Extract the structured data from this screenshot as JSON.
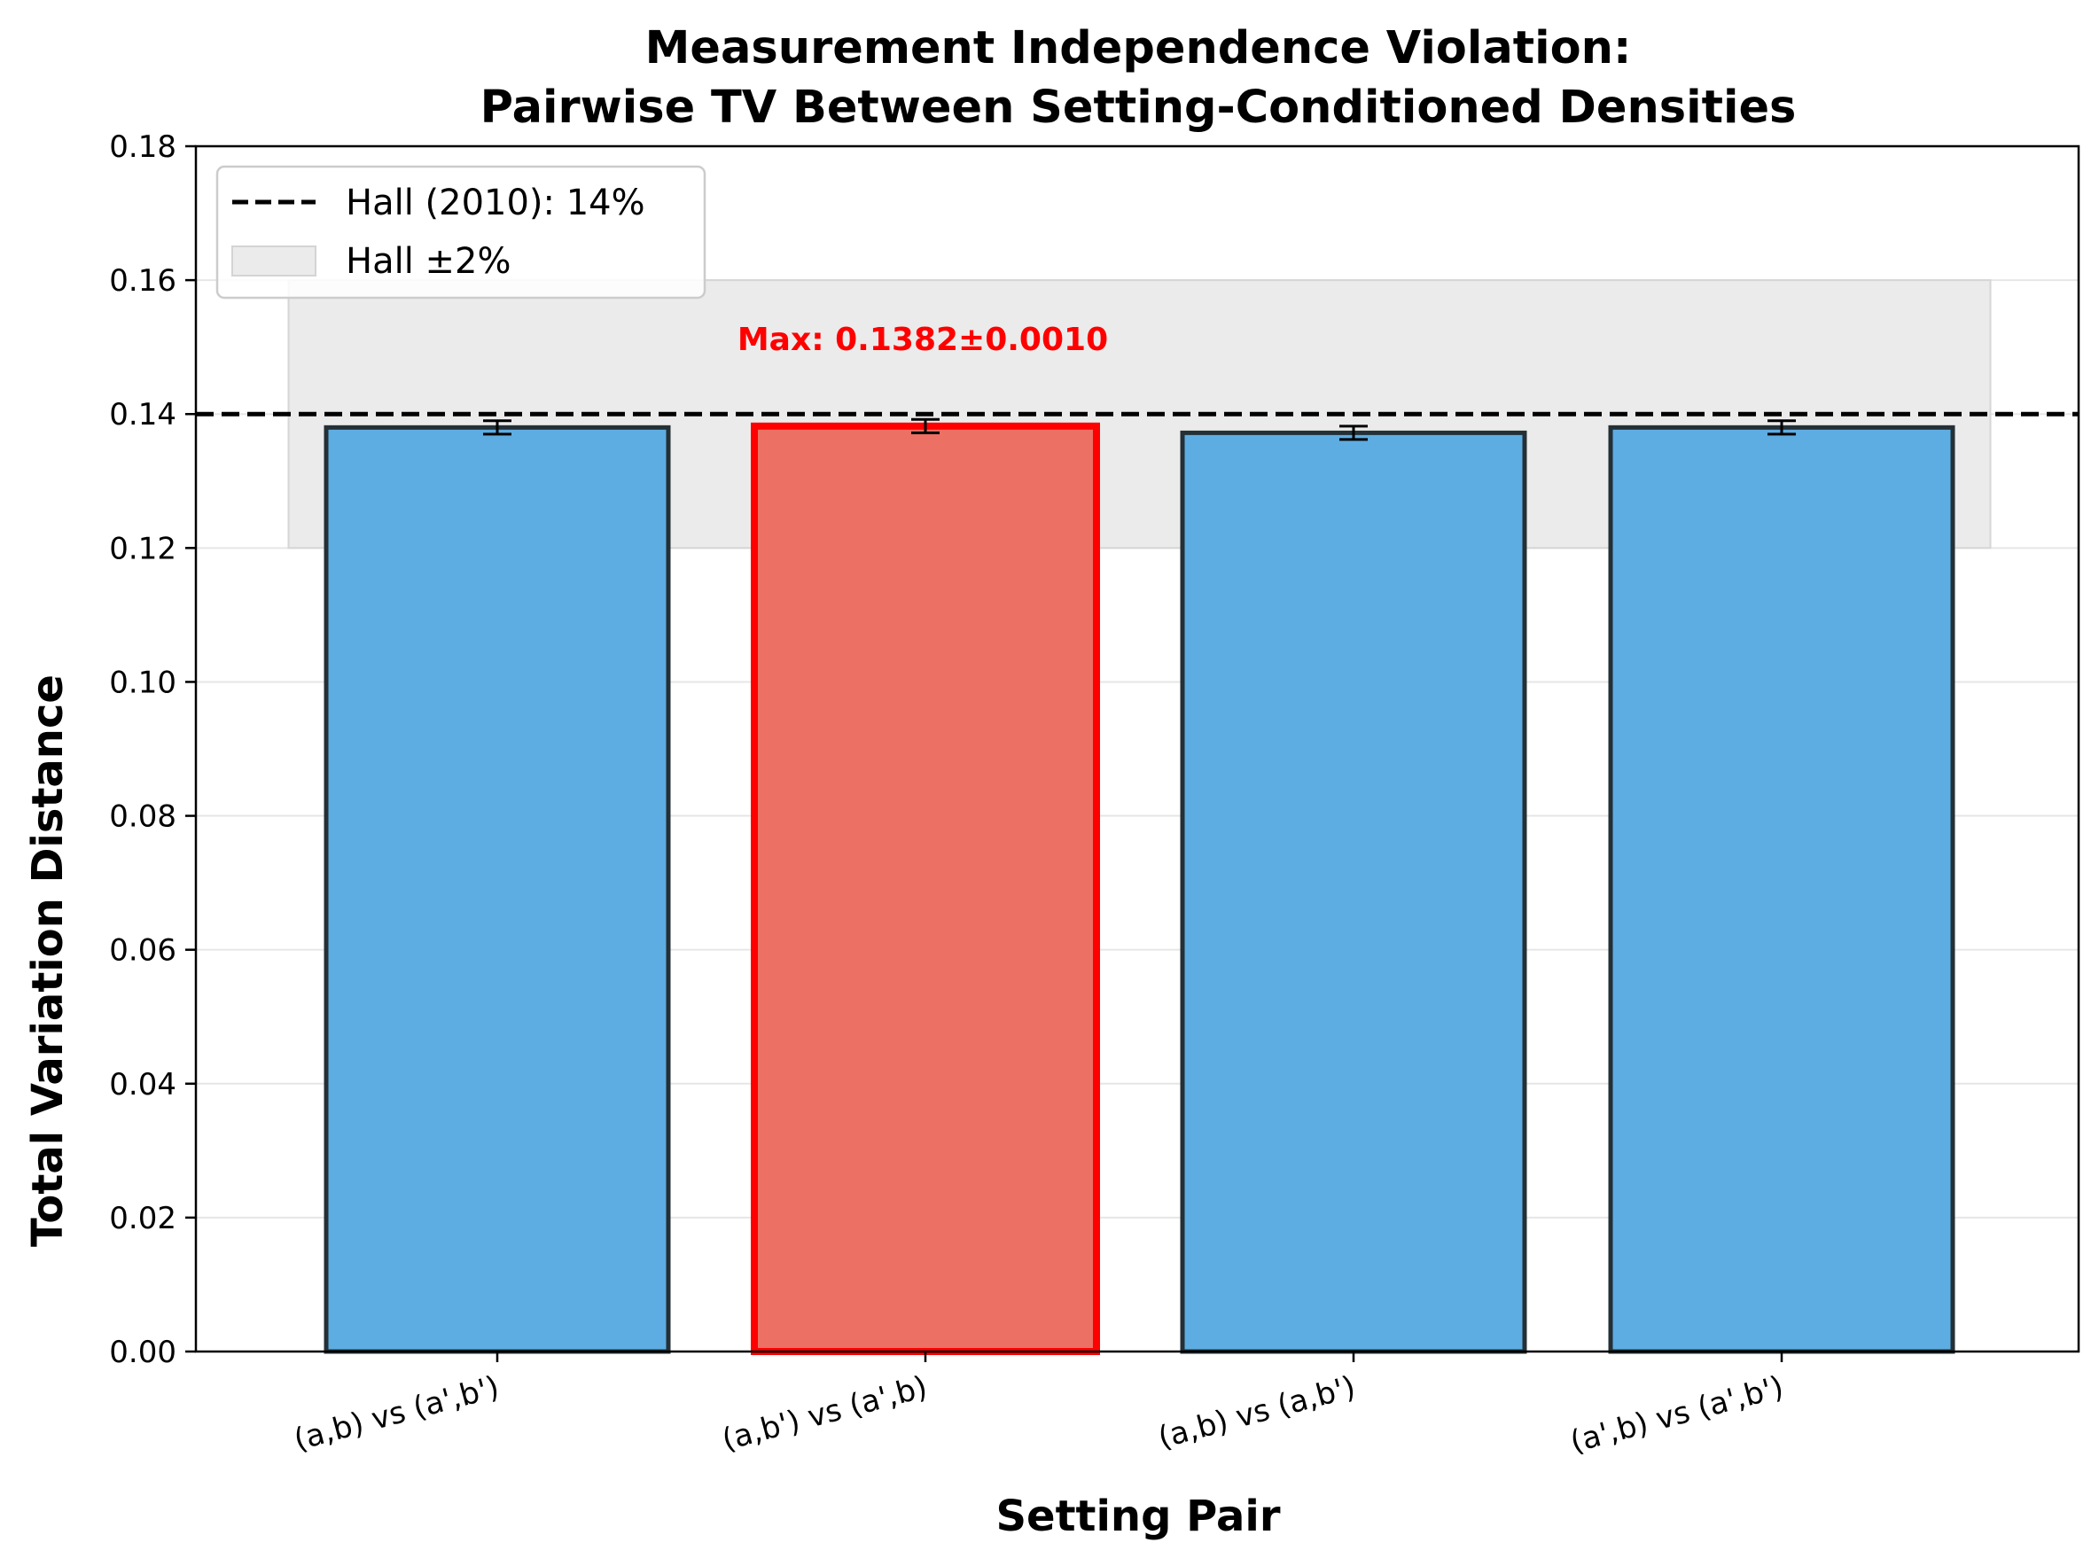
{
  "chart_data": {
    "type": "bar",
    "title": [
      "Measurement Independence Violation:",
      "Pairwise TV Between Setting-Conditioned Densities"
    ],
    "xlabel": "Setting Pair",
    "ylabel": "Total Variation Distance",
    "categories": [
      "(a,b) vs (a',b')",
      "(a,b') vs (a',b)",
      "(a,b) vs (a,b')",
      "(a',b) vs (a',b')"
    ],
    "values": [
      0.138,
      0.1382,
      0.1372,
      0.138
    ],
    "errors": [
      0.001,
      0.001,
      0.001,
      0.001
    ],
    "highlight_index": 1,
    "ylim": [
      0,
      0.18
    ],
    "yticks": [
      "0.00",
      "0.02",
      "0.04",
      "0.06",
      "0.08",
      "0.10",
      "0.12",
      "0.14",
      "0.16",
      "0.18"
    ],
    "grid": "horizontal",
    "reference_line": {
      "value": 0.14,
      "label": "Hall (2010): 14%"
    },
    "reference_band": {
      "low": 0.12,
      "high": 0.16,
      "label": "Hall ±2%"
    },
    "annotation": "Max: 0.1382±0.0010",
    "legend_position": "top-left",
    "colors": {
      "bar": "#5dade2",
      "highlight": "#ec7063",
      "highlight_edge": "#ff0000",
      "edge": "#243036",
      "band": "#ebebeb",
      "annotation": "#ff0000"
    }
  }
}
